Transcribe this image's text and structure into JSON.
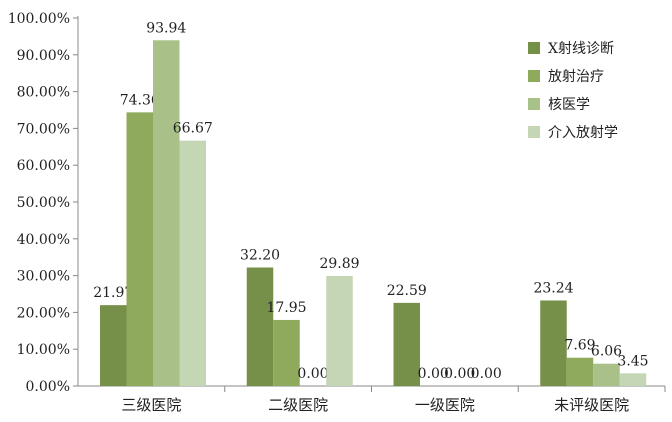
{
  "chart_data": {
    "type": "bar",
    "categories": [
      "三级医院",
      "二级医院",
      "一级医院",
      "未评级医院"
    ],
    "series": [
      {
        "name": "X射线诊断",
        "color": "#76904a",
        "values": [
          21.97,
          32.2,
          22.59,
          23.24
        ]
      },
      {
        "name": "放射治疗",
        "color": "#8faa5c",
        "values": [
          74.36,
          17.95,
          0.0,
          7.69
        ]
      },
      {
        "name": "核医学",
        "color": "#a9c088",
        "values": [
          93.94,
          0.0,
          0.0,
          6.06
        ]
      },
      {
        "name": "介入放射学",
        "color": "#c5d6b4",
        "values": [
          66.67,
          29.89,
          0.0,
          3.45
        ]
      }
    ],
    "data_labels": [
      [
        "21.97",
        "74.36",
        "93.94",
        "66.67"
      ],
      [
        "32.20",
        "17.95",
        "0.00",
        "29.89"
      ],
      [
        "22.59",
        "0.00",
        "0.00",
        "0.00"
      ],
      [
        "23.24",
        "7.69",
        "6.06",
        "3.45"
      ]
    ],
    "yticks": [
      "0.00%",
      "10.00%",
      "20.00%",
      "30.00%",
      "40.00%",
      "50.00%",
      "60.00%",
      "70.00%",
      "80.00%",
      "90.00%",
      "100.00%"
    ],
    "ylim": [
      0,
      100
    ],
    "xlabel": "",
    "ylabel": "",
    "title": "",
    "grid": false,
    "legend_position": "top-right"
  }
}
